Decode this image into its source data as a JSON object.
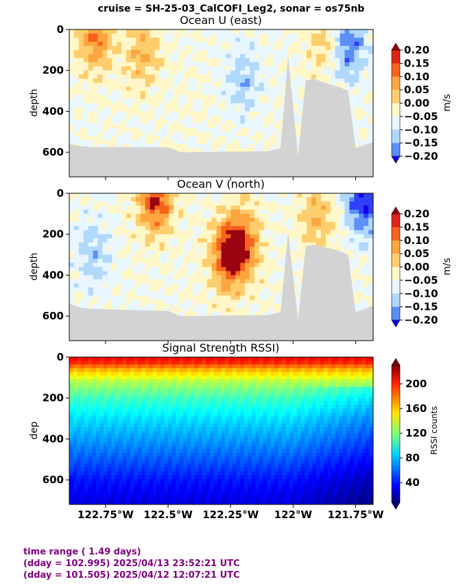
{
  "header": {
    "title": "cruise = SH-25-03_CalCOFI_Leg2,  sonar = os75nb"
  },
  "footer": {
    "line1": "time range ( 1.49 days)",
    "line2": "(dday = 102.995) 2025/04/13 23:52:21 UTC",
    "line3": "(dday = 101.505) 2025/04/12 12:07:21 UTC"
  },
  "chart_data": [
    {
      "type": "heatmap",
      "title": "Ocean U (east)",
      "ylabel": "depth",
      "xlabel": "",
      "x_ticks": [
        "122.75°W",
        "122.5°W",
        "122.25°W",
        "122°W",
        "121.75°W"
      ],
      "x_tick_values": [
        -122.75,
        -122.5,
        -122.25,
        -122.0,
        -121.75
      ],
      "xlim": [
        -122.895,
        -121.68
      ],
      "ylim": [
        720,
        0
      ],
      "y_ticks": [
        "0",
        "200",
        "400",
        "600"
      ],
      "y_tick_values": [
        0,
        200,
        400,
        600
      ],
      "colorbar": {
        "label": "m/s",
        "ticks": [
          "0.20",
          "0.15",
          "0.10",
          "0.05",
          "0.00",
          "−0.05",
          "−0.10",
          "−0.15",
          "−0.20"
        ],
        "tick_values": [
          0.2,
          0.15,
          0.1,
          0.05,
          0.0,
          -0.05,
          -0.1,
          -0.15,
          -0.2
        ],
        "colors": [
          "#1400ef",
          "#3040f5",
          "#5c8ff7",
          "#b0d8fb",
          "#e8f6ff",
          "#fff7c8",
          "#fece6e",
          "#fda640",
          "#f9621c",
          "#e0241a",
          "#9a0410"
        ],
        "extend": "both"
      },
      "features": [
        {
          "x": -122.79,
          "depth": 40,
          "value": 0.15
        },
        {
          "x": -122.6,
          "depth": 120,
          "value": 0.1
        },
        {
          "x": -122.2,
          "depth": 250,
          "value": -0.08
        },
        {
          "x": -121.87,
          "depth": 60,
          "value": 0.08
        },
        {
          "x": -121.78,
          "depth": 80,
          "value": -0.15
        }
      ],
      "bottom_depth": [
        [
          -122.895,
          560
        ],
        [
          -122.85,
          570
        ],
        [
          -122.8,
          575
        ],
        [
          -122.5,
          575
        ],
        [
          -122.45,
          600
        ],
        [
          -122.1,
          595
        ],
        [
          -122.05,
          580
        ],
        [
          -122.02,
          130
        ],
        [
          -121.98,
          620
        ],
        [
          -121.95,
          250
        ],
        [
          -121.92,
          240
        ],
        [
          -121.85,
          270
        ],
        [
          -121.82,
          280
        ],
        [
          -121.78,
          300
        ],
        [
          -121.75,
          580
        ],
        [
          -121.68,
          550
        ]
      ]
    },
    {
      "type": "heatmap",
      "title": "Ocean V (north)",
      "ylabel": "depth",
      "xlabel": "",
      "x_ticks": [
        "122.75°W",
        "122.5°W",
        "122.25°W",
        "122°W",
        "121.75°W"
      ],
      "x_tick_values": [
        -122.75,
        -122.5,
        -122.25,
        -122.0,
        -121.75
      ],
      "xlim": [
        -122.895,
        -121.68
      ],
      "ylim": [
        720,
        0
      ],
      "y_ticks": [
        "0",
        "200",
        "400",
        "600"
      ],
      "y_tick_values": [
        0,
        200,
        400,
        600
      ],
      "colorbar": {
        "label": "m/s",
        "ticks": [
          "0.20",
          "0.15",
          "0.10",
          "0.05",
          "0.00",
          "−0.05",
          "−0.10",
          "−0.15",
          "−0.20"
        ],
        "tick_values": [
          0.2,
          0.15,
          0.1,
          0.05,
          0.0,
          -0.05,
          -0.1,
          -0.15,
          -0.2
        ],
        "colors": [
          "#1400ef",
          "#3040f5",
          "#5c8ff7",
          "#b0d8fb",
          "#e8f6ff",
          "#fff7c8",
          "#fece6e",
          "#fda640",
          "#f9621c",
          "#e0241a",
          "#9a0410"
        ],
        "extend": "both"
      },
      "features": [
        {
          "x": -122.8,
          "depth": 300,
          "value": -0.08
        },
        {
          "x": -122.55,
          "depth": 30,
          "value": 0.2
        },
        {
          "x": -122.26,
          "depth": 300,
          "value": 0.2
        },
        {
          "x": -122.2,
          "depth": 250,
          "value": 0.15
        },
        {
          "x": -121.9,
          "depth": 120,
          "value": 0.1
        },
        {
          "x": -121.72,
          "depth": 30,
          "value": -0.2
        }
      ],
      "bottom_depth": [
        [
          -122.895,
          540
        ],
        [
          -122.85,
          560
        ],
        [
          -122.8,
          565
        ],
        [
          -122.5,
          575
        ],
        [
          -122.45,
          600
        ],
        [
          -122.1,
          595
        ],
        [
          -122.05,
          580
        ],
        [
          -122.02,
          190
        ],
        [
          -121.98,
          620
        ],
        [
          -121.95,
          260
        ],
        [
          -121.92,
          250
        ],
        [
          -121.85,
          270
        ],
        [
          -121.82,
          280
        ],
        [
          -121.78,
          300
        ],
        [
          -121.75,
          580
        ],
        [
          -121.68,
          550
        ]
      ]
    },
    {
      "type": "heatmap",
      "title": "Signal Strength RSSI)",
      "ylabel": "dep",
      "xlabel": "",
      "x_ticks": [
        "122.75°W",
        "122.5°W",
        "122.25°W",
        "122°W",
        "121.75°W"
      ],
      "x_tick_values": [
        -122.75,
        -122.5,
        -122.25,
        -122.0,
        -121.75
      ],
      "xlim": [
        -122.895,
        -121.68
      ],
      "ylim": [
        720,
        0
      ],
      "y_ticks": [
        "0",
        "200",
        "400",
        "600"
      ],
      "y_tick_values": [
        0,
        200,
        400,
        600
      ],
      "colorbar": {
        "label": "RSSI counts",
        "ticks": [
          "200",
          "160",
          "120",
          "80",
          "40"
        ],
        "tick_values": [
          200,
          160,
          120,
          80,
          40
        ],
        "range": [
          8,
          230
        ],
        "extend": "both"
      },
      "profile": [
        {
          "depth": 20,
          "value": 200
        },
        {
          "depth": 60,
          "value": 165
        },
        {
          "depth": 120,
          "value": 130
        },
        {
          "depth": 200,
          "value": 105
        },
        {
          "depth": 300,
          "value": 85
        },
        {
          "depth": 400,
          "value": 70
        },
        {
          "depth": 500,
          "value": 55
        },
        {
          "depth": 600,
          "value": 40
        },
        {
          "depth": 700,
          "value": 30
        }
      ]
    }
  ]
}
